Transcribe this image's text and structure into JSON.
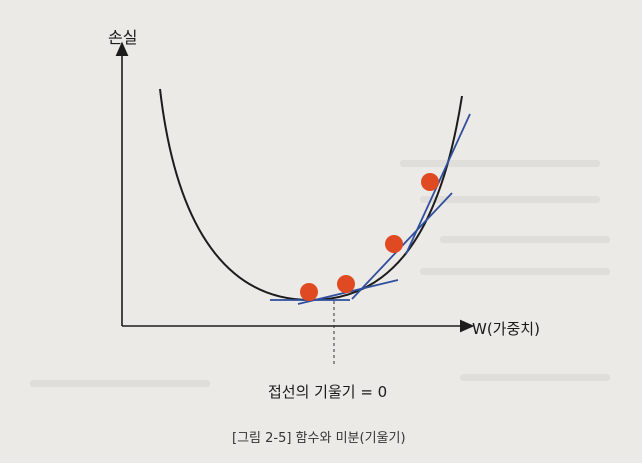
{
  "figure": {
    "y_axis_label": "손실",
    "x_axis_label": "W(가중치)",
    "slope_annotation": "접선의 기울기 = 0",
    "caption": "[그림 2-5] 함수와 미분(기울기)"
  },
  "colors": {
    "curve": "#1c1c1c",
    "axes": "#1c1c1c",
    "tangent": "#2f4f9e",
    "point": "#e04a22",
    "background": "#eceae6"
  }
}
